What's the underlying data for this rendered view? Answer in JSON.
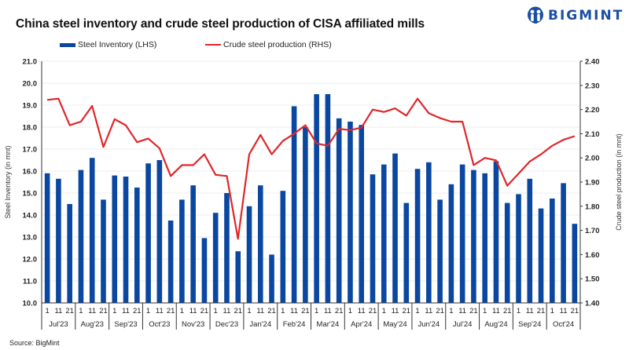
{
  "title": "China steel inventory and crude steel production of CISA affiliated mills",
  "brand": {
    "name": "BIGMINT",
    "icon": "bigmint-logo-icon",
    "color": "#1a4fa3"
  },
  "source": "Source: BigMint",
  "chart_data": {
    "type": "bar+line",
    "title": "China steel inventory and crude steel production of CISA affiliated mills",
    "legend": {
      "placement": "top",
      "entries": [
        "Steel Inventory (LHS)",
        "Crude steel production (RHS)"
      ]
    },
    "ylabel_left": "Steel Inventory (in mnt)",
    "ylabel_right": "Crude steel production (in mnt)",
    "ylim_left": [
      10.0,
      21.0
    ],
    "ylim_right": [
      1.4,
      2.4
    ],
    "yticks_left": [
      "10.0",
      "11.0",
      "12.0",
      "13.0",
      "14.0",
      "15.0",
      "16.0",
      "17.0",
      "18.0",
      "19.0",
      "20.0",
      "21.0"
    ],
    "yticks_right": [
      "1.40",
      "1.50",
      "1.60",
      "1.70",
      "1.80",
      "1.90",
      "2.00",
      "2.10",
      "2.20",
      "2.30",
      "2.40"
    ],
    "grid": true,
    "colors": {
      "bar": "#0a47a1",
      "line": "#e0262a"
    },
    "months": [
      "Jul'23",
      "Aug'23",
      "Sep'23",
      "Oct'23",
      "Nov'23",
      "Dec'23",
      "Jan'24",
      "Feb'24",
      "Mar'24",
      "Apr'24",
      "May'24",
      "Jun'24",
      "Jul'24",
      "Aug'24",
      "Sep'24",
      "Oct'24"
    ],
    "days": [
      "1",
      "11",
      "21"
    ],
    "series": [
      {
        "name": "Steel Inventory (LHS)",
        "type": "bar",
        "axis": "left",
        "values": [
          15.9,
          15.65,
          14.5,
          16.05,
          16.6,
          14.7,
          15.8,
          15.75,
          15.25,
          16.35,
          16.5,
          13.75,
          14.7,
          15.35,
          12.95,
          14.1,
          15.0,
          12.35,
          14.4,
          15.35,
          12.2,
          15.1,
          18.95,
          18.0,
          19.5,
          19.5,
          18.4,
          18.25,
          18.1,
          15.85,
          16.3,
          16.8,
          14.55,
          16.1,
          16.4,
          14.7,
          15.4,
          16.3,
          16.05,
          15.9,
          16.45,
          14.55,
          14.95,
          15.65,
          14.3,
          14.75,
          15.45,
          13.6
        ]
      },
      {
        "name": "Crude steel production (RHS)",
        "type": "line",
        "axis": "right",
        "values": [
          2.24,
          2.245,
          2.135,
          2.15,
          2.215,
          2.045,
          2.16,
          2.135,
          2.065,
          2.08,
          2.04,
          1.925,
          1.97,
          1.97,
          2.015,
          1.93,
          1.925,
          1.665,
          2.015,
          2.095,
          2.015,
          2.07,
          2.1,
          2.135,
          2.06,
          2.05,
          2.12,
          2.115,
          2.125,
          2.2,
          2.19,
          2.205,
          2.175,
          2.245,
          2.185,
          2.165,
          2.15,
          2.15,
          1.97,
          2.0,
          1.99,
          1.885,
          1.935,
          1.985,
          2.015,
          2.05,
          2.075,
          2.09
        ]
      }
    ]
  }
}
